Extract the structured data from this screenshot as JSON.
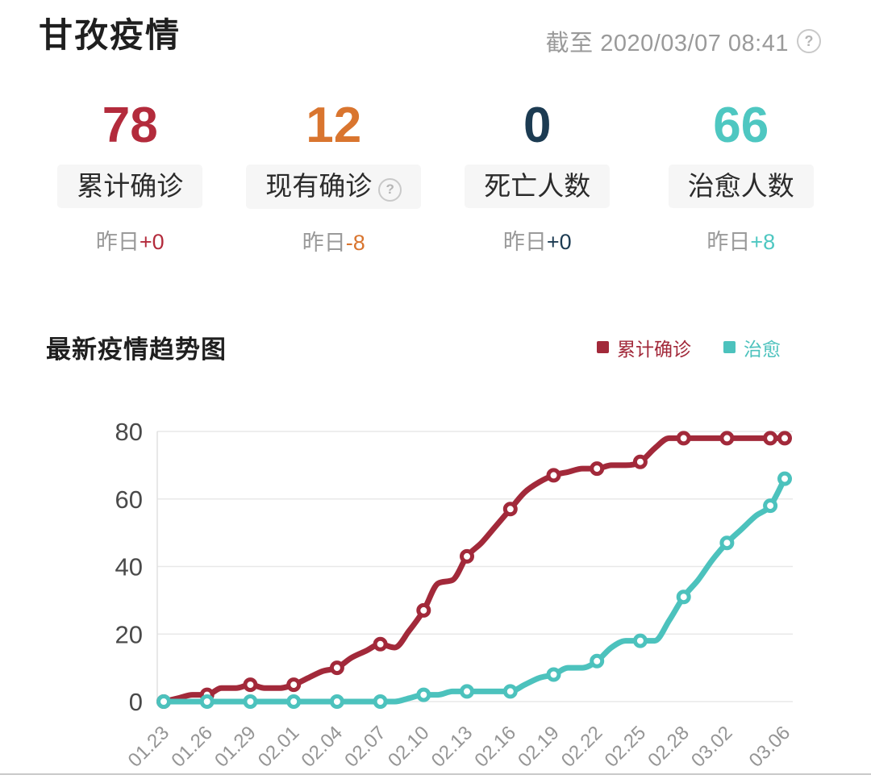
{
  "header": {
    "title": "甘孜疫情",
    "timestamp": "截至 2020/03/07 08:41"
  },
  "icons": {
    "question": "?"
  },
  "stats": [
    {
      "value": "78",
      "label": "累计确诊",
      "delta_prefix": "昨日",
      "delta": "+0",
      "color": "#b32b3c"
    },
    {
      "value": "12",
      "label": "现有确诊",
      "delta_prefix": "昨日",
      "delta": "-8",
      "color": "#d9752f",
      "has_help": true
    },
    {
      "value": "0",
      "label": "死亡人数",
      "delta_prefix": "昨日",
      "delta": "+0",
      "color": "#1c3b52"
    },
    {
      "value": "66",
      "label": "治愈人数",
      "delta_prefix": "昨日",
      "delta": "+8",
      "color": "#4ec7c1"
    }
  ],
  "trend": {
    "title": "最新疫情趋势图"
  },
  "chart_data": {
    "type": "line",
    "title": "最新疫情趋势图",
    "x": [
      "01.23",
      "01.24",
      "01.25",
      "01.26",
      "01.27",
      "01.28",
      "01.29",
      "01.30",
      "01.31",
      "02.01",
      "02.02",
      "02.03",
      "02.04",
      "02.05",
      "02.06",
      "02.07",
      "02.08",
      "02.09",
      "02.10",
      "02.11",
      "02.12",
      "02.13",
      "02.14",
      "02.15",
      "02.16",
      "02.17",
      "02.18",
      "02.19",
      "02.20",
      "02.21",
      "02.22",
      "02.23",
      "02.24",
      "02.25",
      "02.26",
      "02.27",
      "02.28",
      "02.29",
      "03.01",
      "03.02",
      "03.03",
      "03.04",
      "03.05",
      "03.06"
    ],
    "x_tick_indices": [
      0,
      3,
      6,
      9,
      12,
      15,
      18,
      21,
      24,
      27,
      30,
      33,
      36,
      39,
      43
    ],
    "x_tick_labels": [
      "01.23",
      "01.26",
      "01.29",
      "02.01",
      "02.04",
      "02.07",
      "02.10",
      "02.13",
      "02.16",
      "02.19",
      "02.22",
      "02.25",
      "02.28",
      "03.02",
      "03.06"
    ],
    "marker_indices": [
      0,
      3,
      6,
      9,
      12,
      15,
      18,
      21,
      24,
      27,
      30,
      33,
      36,
      39,
      42,
      43
    ],
    "series": [
      {
        "name": "累计确诊",
        "color": "#a2293a",
        "values": [
          0,
          1,
          2,
          2,
          4,
          4,
          5,
          4,
          4,
          5,
          7,
          9,
          10,
          13,
          15,
          17,
          16,
          21,
          27,
          35,
          36,
          43,
          47,
          52,
          57,
          62,
          65,
          67,
          68,
          69,
          69,
          70,
          70,
          71,
          75,
          78,
          78,
          78,
          78,
          78,
          78,
          78,
          78,
          78
        ]
      },
      {
        "name": "治愈",
        "color": "#4cc2bd",
        "values": [
          0,
          0,
          0,
          0,
          0,
          0,
          0,
          0,
          0,
          0,
          0,
          0,
          0,
          0,
          0,
          0,
          0,
          1,
          2,
          2,
          3,
          3,
          3,
          3,
          3,
          5,
          7,
          8,
          10,
          10,
          12,
          16,
          18,
          18,
          18,
          24,
          31,
          36,
          42,
          47,
          51,
          55,
          58,
          66
        ]
      }
    ],
    "ylim": [
      0,
      80
    ],
    "yticks": [
      0,
      20,
      40,
      60,
      80
    ],
    "grid": true,
    "legend_position": "top-right",
    "grid_color": "#e8e8e8",
    "axis_line_color": "#e0e0e0",
    "ytick_color": "#4a4a4a",
    "xtick_color": "#959595",
    "marker_fill": "#ffffff"
  }
}
